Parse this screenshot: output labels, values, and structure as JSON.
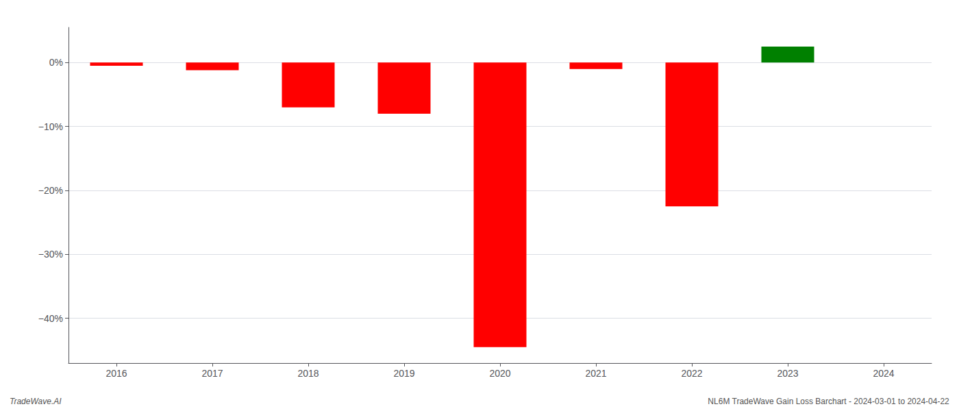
{
  "chart_data": {
    "type": "bar",
    "categories": [
      "2016",
      "2017",
      "2018",
      "2019",
      "2020",
      "2021",
      "2022",
      "2023",
      "2024"
    ],
    "values": [
      -0.5,
      -1.2,
      -7.0,
      -8.0,
      -44.5,
      -1.0,
      -22.5,
      2.5,
      0.0
    ],
    "colors": [
      "#ff0000",
      "#ff0000",
      "#ff0000",
      "#ff0000",
      "#ff0000",
      "#ff0000",
      "#ff0000",
      "#008000",
      null
    ],
    "ylim": [
      -47,
      5.5
    ],
    "yticks": [
      {
        "value": 0,
        "label": "0%"
      },
      {
        "value": -10,
        "label": "−10%"
      },
      {
        "value": -20,
        "label": "−20%"
      },
      {
        "value": -30,
        "label": "−30%"
      },
      {
        "value": -40,
        "label": "−40%"
      }
    ],
    "annotations": [
      "TradeWave.AI",
      "NL6M TradeWave Gain Loss Barchart - 2024-03-01 to 2024-04-22"
    ],
    "grid": true
  }
}
